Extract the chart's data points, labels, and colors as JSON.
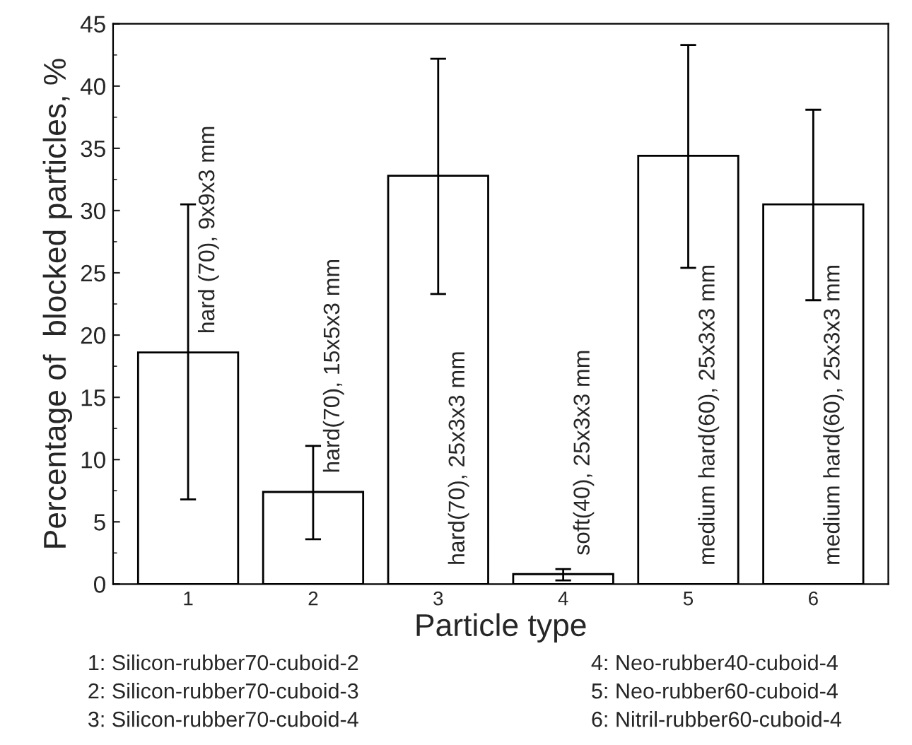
{
  "chart_data": {
    "type": "bar",
    "xlabel": "Particle type",
    "ylabel": "Percentage of  blocked particles, %",
    "categories": [
      "1",
      "2",
      "3",
      "4",
      "5",
      "6"
    ],
    "values": [
      18.6,
      7.4,
      32.8,
      0.8,
      34.4,
      30.5
    ],
    "errors": [
      [
        6.8,
        30.5
      ],
      [
        3.6,
        11.1
      ],
      [
        23.3,
        42.2
      ],
      [
        0.3,
        1.2
      ],
      [
        25.4,
        43.3
      ],
      [
        22.8,
        38.1
      ]
    ],
    "color": "#ffffff",
    "ylim": [
      0,
      45
    ],
    "yticks": [
      0,
      5,
      10,
      15,
      20,
      25,
      30,
      35,
      40,
      45
    ],
    "grid": false,
    "legend": false,
    "annotations": [
      "hard (70), 9x9x3 mm",
      "hard(70), 15x5x3 mm",
      "hard(70), 25x3x3 mm",
      "soft(40), 25x3x3 mm",
      "medium hard(60), 25x3x3 mm",
      "medium hard(60), 25x3x3 mm",
      "1: Silicon-rubber70-cuboid-2",
      "2: Silicon-rubber70-cuboid-3",
      "3: Silicon-rubber70-cuboid-4",
      "4: Neo-rubber40-cuboid-4",
      "5: Neo-rubber60-cuboid-4",
      "6: Nitril-rubber60-cuboid-4"
    ]
  }
}
